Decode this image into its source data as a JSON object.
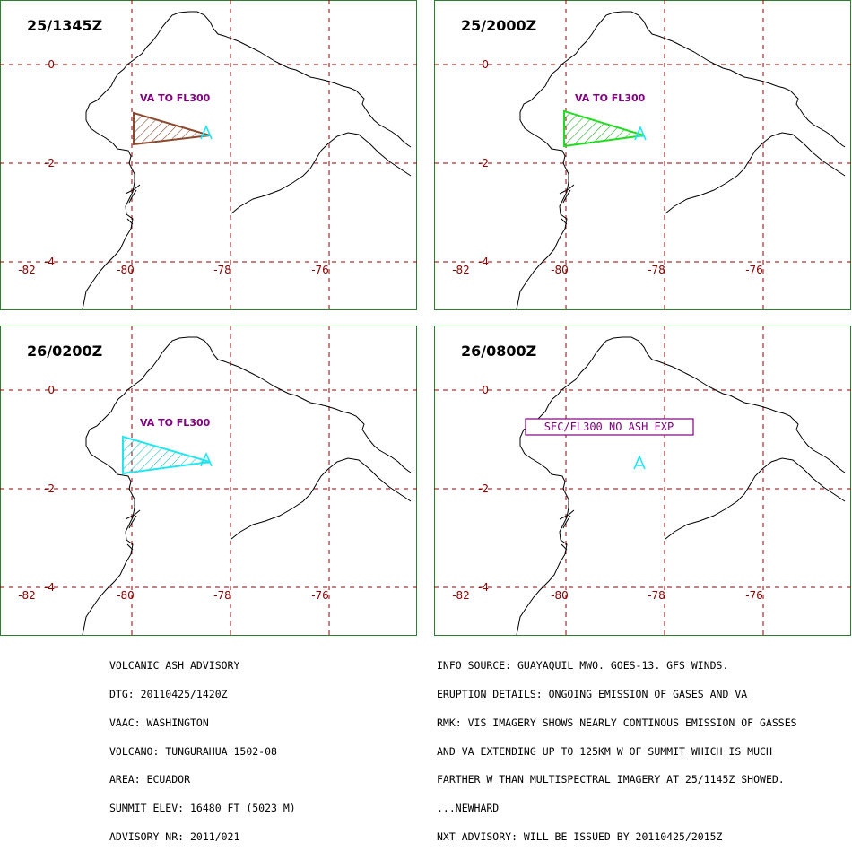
{
  "panels": [
    {
      "time": "25/1345Z",
      "label": "VA TO FL300",
      "polygon_color": "#8b4a2e",
      "hatch_color": "#8b4a2e"
    },
    {
      "time": "25/2000Z",
      "label": "VA TO FL300",
      "polygon_color": "#22dd22",
      "hatch_color": "#22aa22"
    },
    {
      "time": "26/0200Z",
      "label": "VA TO FL300",
      "polygon_color": "#22e6f0",
      "hatch_color": "#22b8c0"
    },
    {
      "time": "26/0800Z",
      "label": "SFC/FL300 NO ASH EXP",
      "polygon_color": null,
      "hatch_color": null
    }
  ],
  "axes": {
    "lat_labels": [
      "0",
      "-2",
      "-4"
    ],
    "lon_labels": [
      "-82",
      "-80",
      "-78",
      "-76"
    ]
  },
  "colors": {
    "frame": "#2e7d32",
    "grid": "#8b0000",
    "axis_label": "#8b0000",
    "coast": "#000000",
    "volcano": "#22e6f0",
    "label": "#800080"
  },
  "advisory_left": [
    "VOLCANIC ASH ADVISORY",
    "DTG: 20110425/1420Z",
    "VAAC: WASHINGTON",
    "VOLCANO: TUNGURAHUA 1502-08",
    "AREA: ECUADOR",
    "SUMMIT ELEV: 16480 FT (5023 M)",
    "ADVISORY NR: 2011/021"
  ],
  "advisory_right": [
    "INFO SOURCE: GUAYAQUIL MWO. GOES-13. GFS WINDS.",
    "ERUPTION DETAILS: ONGOING EMISSION OF GASES AND VA",
    "RMK: VIS IMAGERY SHOWS NEARLY CONTINOUS EMISSION OF GASSES",
    "AND VA EXTENDING UP TO 125KM W OF SUMMIT WHICH IS MUCH",
    "FARTHER W THAN MULTISPECTRAL IMAGERY AT 25/1145Z SHOWED.",
    "...NEWHARD",
    "NXT ADVISORY: WILL BE ISSUED BY 20110425/2015Z"
  ]
}
